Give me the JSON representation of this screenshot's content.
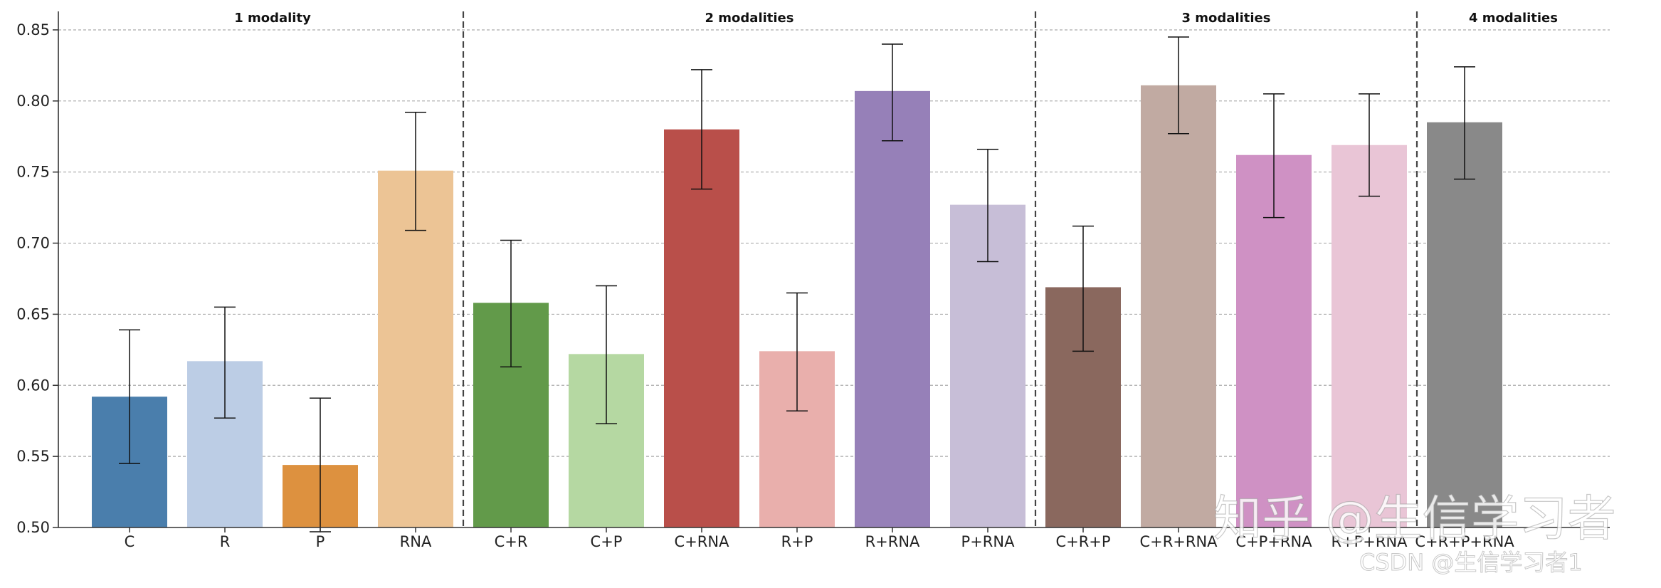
{
  "chart_data": {
    "type": "bar",
    "title": "",
    "xlabel": "",
    "ylabel": "",
    "ylim": [
      0.5,
      0.86
    ],
    "yticks": [
      "0.50",
      "0.55",
      "0.60",
      "0.65",
      "0.70",
      "0.75",
      "0.80",
      "0.85"
    ],
    "grid": "horizontal dashed",
    "error_bars": true,
    "categories": [
      "C",
      "R",
      "P",
      "RNA",
      "C+R",
      "C+P",
      "C+RNA",
      "R+P",
      "R+RNA",
      "P+RNA",
      "C+R+P",
      "C+R+RNA",
      "C+P+RNA",
      "R+P+RNA",
      "C+R+P+RNA"
    ],
    "values": [
      0.592,
      0.617,
      0.544,
      0.751,
      0.658,
      0.622,
      0.78,
      0.624,
      0.807,
      0.727,
      0.669,
      0.811,
      0.762,
      0.769,
      0.785
    ],
    "error_low": [
      0.545,
      0.577,
      0.497,
      0.709,
      0.613,
      0.573,
      0.738,
      0.582,
      0.772,
      0.687,
      0.624,
      0.777,
      0.718,
      0.733,
      0.745
    ],
    "error_high": [
      0.639,
      0.655,
      0.591,
      0.792,
      0.702,
      0.67,
      0.822,
      0.665,
      0.84,
      0.766,
      0.712,
      0.845,
      0.805,
      0.805,
      0.824
    ],
    "colors": [
      "#4a7eac",
      "#bccde5",
      "#dd913f",
      "#ecc495",
      "#629a4a",
      "#b5d8a2",
      "#b94f4a",
      "#e9afac",
      "#9680b8",
      "#c7bed7",
      "#8a685e",
      "#c1aaa2",
      "#cf91c4",
      "#e9c5d6",
      "#898989"
    ],
    "groups": [
      {
        "label": "1 modality",
        "start": 0,
        "end": 3
      },
      {
        "label": "2 modalities",
        "start": 4,
        "end": 9
      },
      {
        "label": "3 modalities",
        "start": 10,
        "end": 13
      },
      {
        "label": "4 modalities",
        "start": 14,
        "end": 14
      }
    ]
  },
  "watermark": {
    "main": "知乎 @生信学习者",
    "sub": "CSDN @生信学习者1"
  }
}
